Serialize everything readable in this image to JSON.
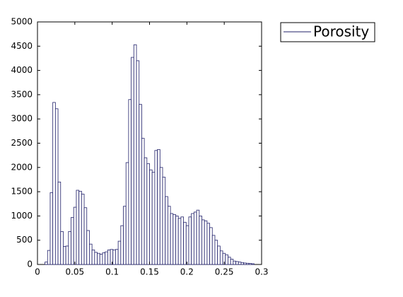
{
  "chart_data": {
    "type": "histogram",
    "bins": [
      0.01,
      0.0135,
      0.017,
      0.0205,
      0.024,
      0.0275,
      0.031,
      0.0345,
      0.038,
      0.0415,
      0.045,
      0.0485,
      0.052,
      0.0555,
      0.059,
      0.0625,
      0.066,
      0.0695,
      0.073,
      0.0765,
      0.08,
      0.0835,
      0.087,
      0.0905,
      0.094,
      0.0975,
      0.101,
      0.1045,
      0.108,
      0.1115,
      0.115,
      0.1185,
      0.122,
      0.1255,
      0.129,
      0.1325,
      0.136,
      0.1395,
      0.143,
      0.1465,
      0.15,
      0.1535,
      0.157,
      0.1605,
      0.164,
      0.1675,
      0.171,
      0.1745,
      0.178,
      0.1815,
      0.185,
      0.1885,
      0.192,
      0.1955,
      0.199,
      0.2025,
      0.206,
      0.2095,
      0.213,
      0.2165,
      0.22,
      0.2235,
      0.227,
      0.2305,
      0.234,
      0.2375,
      0.241,
      0.2445,
      0.248,
      0.2515,
      0.255,
      0.2585,
      0.262,
      0.2655,
      0.269,
      0.2725,
      0.276,
      0.2795,
      0.283,
      0.2865,
      0.29
    ],
    "series": [
      {
        "name": "Porosity",
        "color": "#20206a",
        "values": [
          50,
          290,
          1480,
          3340,
          3210,
          1700,
          680,
          370,
          380,
          680,
          970,
          1180,
          1530,
          1510,
          1450,
          1170,
          700,
          420,
          300,
          250,
          230,
          210,
          240,
          260,
          300,
          310,
          300,
          310,
          480,
          800,
          1200,
          2100,
          3400,
          4270,
          4530,
          4200,
          3300,
          2600,
          2200,
          2080,
          1950,
          1900,
          2350,
          2370,
          2000,
          1800,
          1400,
          1200,
          1050,
          1030,
          1000,
          950,
          980,
          870,
          800,
          980,
          1050,
          1080,
          1120,
          1000,
          920,
          900,
          850,
          760,
          600,
          500,
          380,
          280,
          230,
          200,
          150,
          110,
          70,
          60,
          50,
          40,
          30,
          25,
          20,
          15
        ]
      }
    ],
    "xlim": [
      0,
      0.3
    ],
    "ylim": [
      0,
      5000
    ],
    "xticks": [
      0,
      0.05,
      0.1,
      0.15,
      0.2,
      0.25,
      0.3
    ],
    "yticks": [
      0,
      500,
      1000,
      1500,
      2000,
      2500,
      3000,
      3500,
      4000,
      4500,
      5000
    ],
    "legend": "outside-right"
  }
}
